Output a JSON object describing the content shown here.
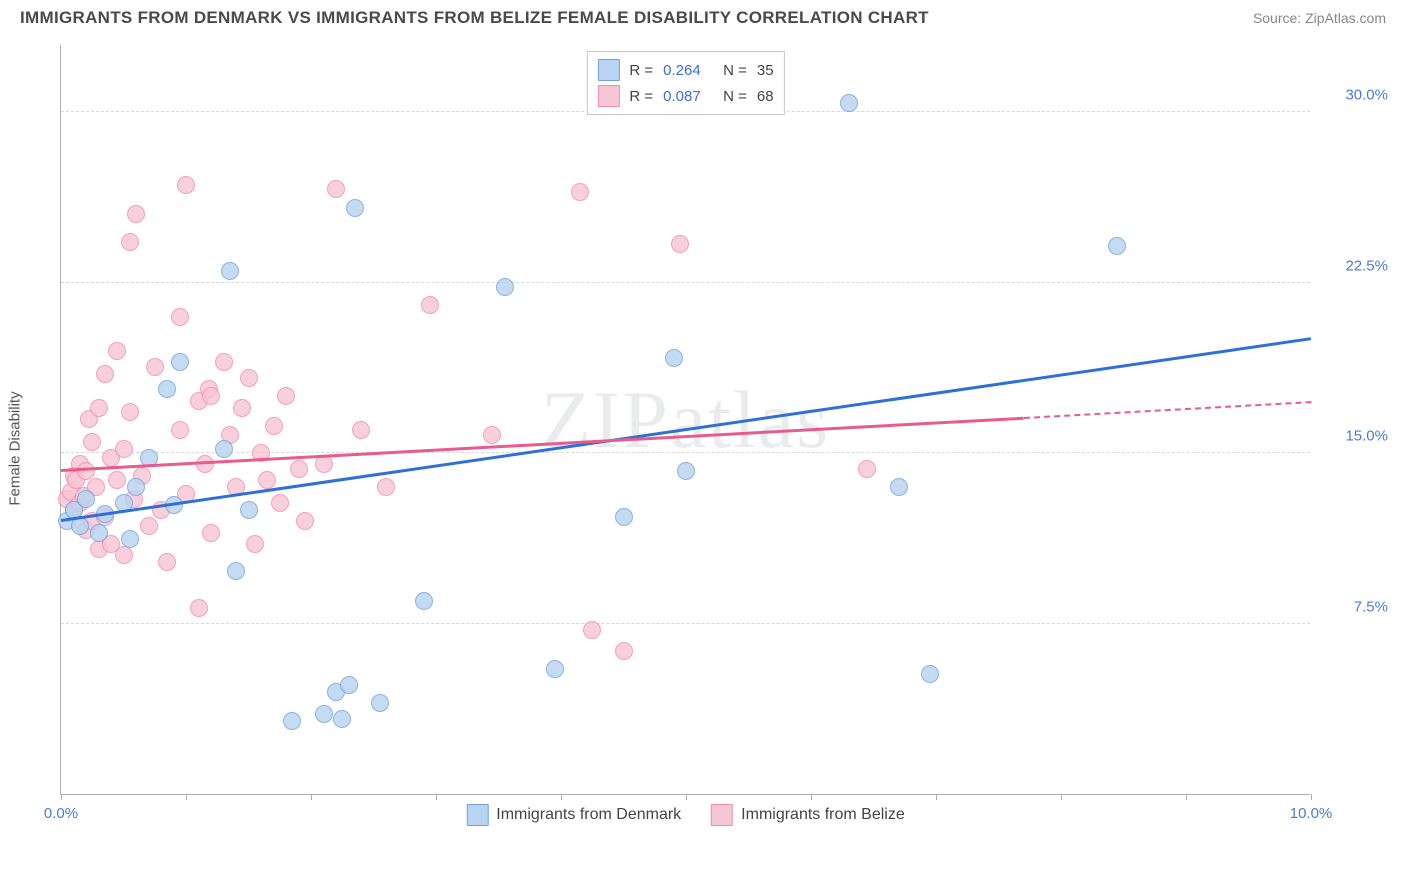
{
  "title": "IMMIGRANTS FROM DENMARK VS IMMIGRANTS FROM BELIZE FEMALE DISABILITY CORRELATION CHART",
  "source": "Source: ZipAtlas.com",
  "watermark": "ZIPatlas",
  "y_axis_label": "Female Disability",
  "chart": {
    "type": "scatter",
    "xlim": [
      0,
      10
    ],
    "ylim": [
      0,
      33
    ],
    "x_ticks": [
      0,
      1,
      2,
      3,
      4,
      5,
      6,
      7,
      8,
      9,
      10
    ],
    "x_tick_labels": {
      "0": "0.0%",
      "10": "10.0%"
    },
    "y_gridlines": [
      7.5,
      15.0,
      22.5,
      30.0
    ],
    "y_tick_labels": [
      "7.5%",
      "15.0%",
      "22.5%",
      "30.0%"
    ],
    "background_color": "#ffffff",
    "grid_color": "#d8d8d8",
    "axis_color": "#b0b0b0",
    "tick_label_color": "#4b7bd6",
    "point_radius": 9,
    "series": [
      {
        "name": "Immigrants from Denmark",
        "fill_color": "#b9d4f0",
        "stroke_color": "#6fa3e0",
        "trend_color": "#2e6fd8",
        "R": "0.264",
        "N": "35",
        "trend": {
          "x1": 0,
          "y1": 12.0,
          "x2": 10,
          "y2": 20.0
        },
        "points": [
          {
            "x": 0.05,
            "y": 12.0
          },
          {
            "x": 0.1,
            "y": 12.5
          },
          {
            "x": 0.15,
            "y": 11.8
          },
          {
            "x": 0.2,
            "y": 13.0
          },
          {
            "x": 0.3,
            "y": 11.5
          },
          {
            "x": 0.35,
            "y": 12.3
          },
          {
            "x": 0.5,
            "y": 12.8
          },
          {
            "x": 0.55,
            "y": 11.2
          },
          {
            "x": 0.6,
            "y": 13.5
          },
          {
            "x": 0.7,
            "y": 14.8
          },
          {
            "x": 0.85,
            "y": 17.8
          },
          {
            "x": 0.9,
            "y": 12.7
          },
          {
            "x": 0.95,
            "y": 19.0
          },
          {
            "x": 1.35,
            "y": 23.0
          },
          {
            "x": 1.3,
            "y": 15.2
          },
          {
            "x": 1.4,
            "y": 9.8
          },
          {
            "x": 1.5,
            "y": 12.5
          },
          {
            "x": 1.85,
            "y": 3.2
          },
          {
            "x": 2.1,
            "y": 3.5
          },
          {
            "x": 2.2,
            "y": 4.5
          },
          {
            "x": 2.25,
            "y": 3.3
          },
          {
            "x": 2.3,
            "y": 4.8
          },
          {
            "x": 2.35,
            "y": 25.8
          },
          {
            "x": 2.55,
            "y": 4.0
          },
          {
            "x": 2.9,
            "y": 8.5
          },
          {
            "x": 3.55,
            "y": 22.3
          },
          {
            "x": 3.95,
            "y": 5.5
          },
          {
            "x": 4.5,
            "y": 12.2
          },
          {
            "x": 4.9,
            "y": 19.2
          },
          {
            "x": 5.0,
            "y": 14.2
          },
          {
            "x": 6.3,
            "y": 30.4
          },
          {
            "x": 6.7,
            "y": 13.5
          },
          {
            "x": 6.95,
            "y": 5.3
          },
          {
            "x": 8.45,
            "y": 24.1
          }
        ]
      },
      {
        "name": "Immigrants from Belize",
        "fill_color": "#f7c6d4",
        "stroke_color": "#f28bb0",
        "trend_color": "#e85b8f",
        "R": "0.087",
        "N": "68",
        "trend": {
          "x1": 0,
          "y1": 14.2,
          "x2": 7.7,
          "y2": 16.5
        },
        "trend_dash": {
          "x1": 7.7,
          "y1": 16.5,
          "x2": 10,
          "y2": 17.2
        },
        "points": [
          {
            "x": 0.05,
            "y": 13.0
          },
          {
            "x": 0.08,
            "y": 13.3
          },
          {
            "x": 0.1,
            "y": 14.0
          },
          {
            "x": 0.1,
            "y": 12.5
          },
          {
            "x": 0.12,
            "y": 13.8
          },
          {
            "x": 0.15,
            "y": 12.8
          },
          {
            "x": 0.15,
            "y": 14.5
          },
          {
            "x": 0.18,
            "y": 13.1
          },
          {
            "x": 0.2,
            "y": 11.6
          },
          {
            "x": 0.2,
            "y": 14.2
          },
          {
            "x": 0.22,
            "y": 16.5
          },
          {
            "x": 0.25,
            "y": 12.0
          },
          {
            "x": 0.25,
            "y": 15.5
          },
          {
            "x": 0.28,
            "y": 13.5
          },
          {
            "x": 0.3,
            "y": 10.8
          },
          {
            "x": 0.3,
            "y": 17.0
          },
          {
            "x": 0.35,
            "y": 12.2
          },
          {
            "x": 0.35,
            "y": 18.5
          },
          {
            "x": 0.4,
            "y": 14.8
          },
          {
            "x": 0.4,
            "y": 11.0
          },
          {
            "x": 0.45,
            "y": 19.5
          },
          {
            "x": 0.45,
            "y": 13.8
          },
          {
            "x": 0.5,
            "y": 15.2
          },
          {
            "x": 0.5,
            "y": 10.5
          },
          {
            "x": 0.55,
            "y": 16.8
          },
          {
            "x": 0.55,
            "y": 24.3
          },
          {
            "x": 0.58,
            "y": 13.0
          },
          {
            "x": 0.6,
            "y": 25.5
          },
          {
            "x": 0.65,
            "y": 14.0
          },
          {
            "x": 0.7,
            "y": 11.8
          },
          {
            "x": 0.75,
            "y": 18.8
          },
          {
            "x": 0.8,
            "y": 12.5
          },
          {
            "x": 0.85,
            "y": 10.2
          },
          {
            "x": 0.95,
            "y": 16.0
          },
          {
            "x": 0.95,
            "y": 21.0
          },
          {
            "x": 1.0,
            "y": 13.2
          },
          {
            "x": 1.0,
            "y": 26.8
          },
          {
            "x": 1.1,
            "y": 8.2
          },
          {
            "x": 1.1,
            "y": 17.3
          },
          {
            "x": 1.15,
            "y": 14.5
          },
          {
            "x": 1.18,
            "y": 17.8
          },
          {
            "x": 1.2,
            "y": 17.5
          },
          {
            "x": 1.2,
            "y": 11.5
          },
          {
            "x": 1.3,
            "y": 19.0
          },
          {
            "x": 1.35,
            "y": 15.8
          },
          {
            "x": 1.4,
            "y": 13.5
          },
          {
            "x": 1.45,
            "y": 17.0
          },
          {
            "x": 1.5,
            "y": 18.3
          },
          {
            "x": 1.55,
            "y": 11.0
          },
          {
            "x": 1.6,
            "y": 15.0
          },
          {
            "x": 1.65,
            "y": 13.8
          },
          {
            "x": 1.7,
            "y": 16.2
          },
          {
            "x": 1.75,
            "y": 12.8
          },
          {
            "x": 1.8,
            "y": 17.5
          },
          {
            "x": 1.9,
            "y": 14.3
          },
          {
            "x": 1.95,
            "y": 12.0
          },
          {
            "x": 2.1,
            "y": 14.5
          },
          {
            "x": 2.2,
            "y": 26.6
          },
          {
            "x": 2.4,
            "y": 16.0
          },
          {
            "x": 2.6,
            "y": 13.5
          },
          {
            "x": 2.95,
            "y": 21.5
          },
          {
            "x": 3.45,
            "y": 15.8
          },
          {
            "x": 4.15,
            "y": 26.5
          },
          {
            "x": 4.25,
            "y": 7.2
          },
          {
            "x": 4.5,
            "y": 6.3
          },
          {
            "x": 4.95,
            "y": 24.2
          },
          {
            "x": 6.45,
            "y": 14.3
          }
        ]
      }
    ]
  },
  "legend_top": {
    "r_label": "R =",
    "n_label": "N ="
  },
  "legend_bottom": [
    {
      "label": "Immigrants from Denmark"
    },
    {
      "label": "Immigrants from Belize"
    }
  ]
}
